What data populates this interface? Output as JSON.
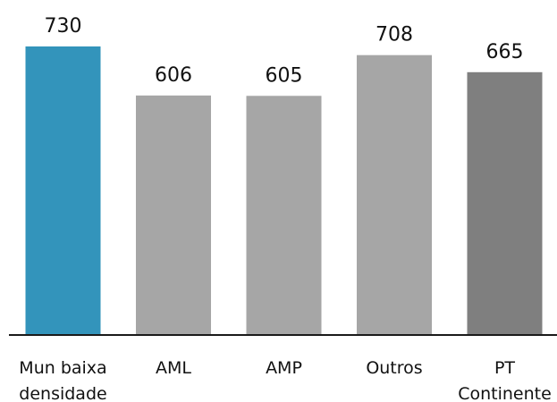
{
  "chart_data": {
    "type": "bar",
    "title": "",
    "xlabel": "",
    "ylabel": "",
    "ylim": [
      0,
      730
    ],
    "grid": false,
    "legend": "none",
    "categories": [
      [
        "Mun baixa",
        "densidade"
      ],
      [
        "AML"
      ],
      [
        "AMP"
      ],
      [
        "Outros"
      ],
      [
        "PT",
        "Continente"
      ]
    ],
    "values": [
      730,
      606,
      605,
      708,
      665
    ],
    "colors": [
      "#3394bb",
      "#a6a6a6",
      "#a6a6a6",
      "#a6a6a6",
      "#7f7f7f"
    ]
  }
}
